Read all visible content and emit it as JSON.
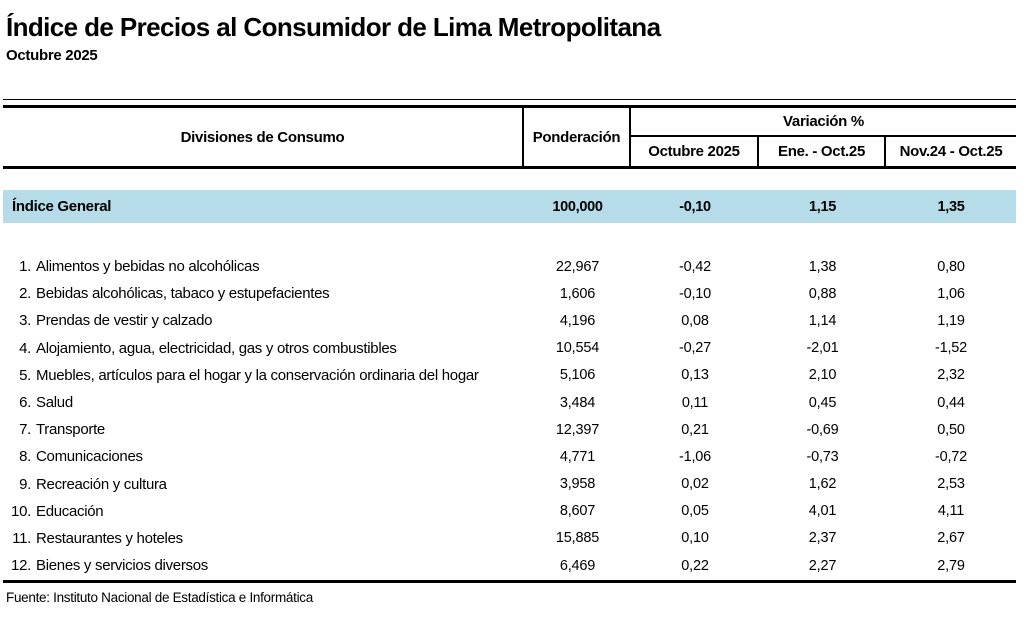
{
  "header": {
    "title": "Índice de Precios al Consumidor de Lima Metropolitana",
    "subtitle": "Octubre 2025"
  },
  "table": {
    "columns": {
      "divisiones": "Divisiones de Consumo",
      "ponderacion": "Ponderación",
      "variacion_group": "Variación %",
      "sub_octubre": "Octubre 2025",
      "sub_ene_oct": "Ene. - Oct.25",
      "sub_nov_oct": "Nov.24 - Oct.25"
    },
    "general": {
      "label": "Índice General",
      "ponderacion": "100,000",
      "oct": "-0,10",
      "ene": "1,15",
      "nov": "1,35"
    },
    "rows": [
      {
        "num": "1.",
        "name": "Alimentos y bebidas no alcohólicas",
        "ponderacion": "22,967",
        "oct": "-0,42",
        "ene": "1,38",
        "nov": "0,80"
      },
      {
        "num": "2.",
        "name": "Bebidas alcohólicas, tabaco y estupefacientes",
        "ponderacion": "1,606",
        "oct": "-0,10",
        "ene": "0,88",
        "nov": "1,06"
      },
      {
        "num": "3.",
        "name": "Prendas de vestir y calzado",
        "ponderacion": "4,196",
        "oct": "0,08",
        "ene": "1,14",
        "nov": "1,19"
      },
      {
        "num": "4.",
        "name": "Alojamiento, agua, electricidad, gas y otros combustibles",
        "ponderacion": "10,554",
        "oct": "-0,27",
        "ene": "-2,01",
        "nov": "-1,52"
      },
      {
        "num": "5.",
        "name": "Muebles, artículos para el hogar y la conservación ordinaria del hogar",
        "ponderacion": "5,106",
        "oct": "0,13",
        "ene": "2,10",
        "nov": "2,32"
      },
      {
        "num": "6.",
        "name": "Salud",
        "ponderacion": "3,484",
        "oct": "0,11",
        "ene": "0,45",
        "nov": "0,44"
      },
      {
        "num": "7.",
        "name": "Transporte",
        "ponderacion": "12,397",
        "oct": "0,21",
        "ene": "-0,69",
        "nov": "0,50"
      },
      {
        "num": "8.",
        "name": "Comunicaciones",
        "ponderacion": "4,771",
        "oct": "-1,06",
        "ene": "-0,73",
        "nov": "-0,72"
      },
      {
        "num": "9.",
        "name": "Recreación y cultura",
        "ponderacion": "3,958",
        "oct": "0,02",
        "ene": "1,62",
        "nov": "2,53"
      },
      {
        "num": "10.",
        "name": "Educación",
        "ponderacion": "8,607",
        "oct": "0,05",
        "ene": "4,01",
        "nov": "4,11"
      },
      {
        "num": "11.",
        "name": "Restaurantes y hoteles",
        "ponderacion": "15,885",
        "oct": "0,10",
        "ene": "2,37",
        "nov": "2,67"
      },
      {
        "num": "12.",
        "name": "Bienes y servicios diversos",
        "ponderacion": "6,469",
        "oct": "0,22",
        "ene": "2,27",
        "nov": "2,79"
      }
    ]
  },
  "footer": {
    "source": "Fuente: Instituto Nacional de Estadística e Informática"
  },
  "colors": {
    "highlight_row": "#b5dce8"
  }
}
